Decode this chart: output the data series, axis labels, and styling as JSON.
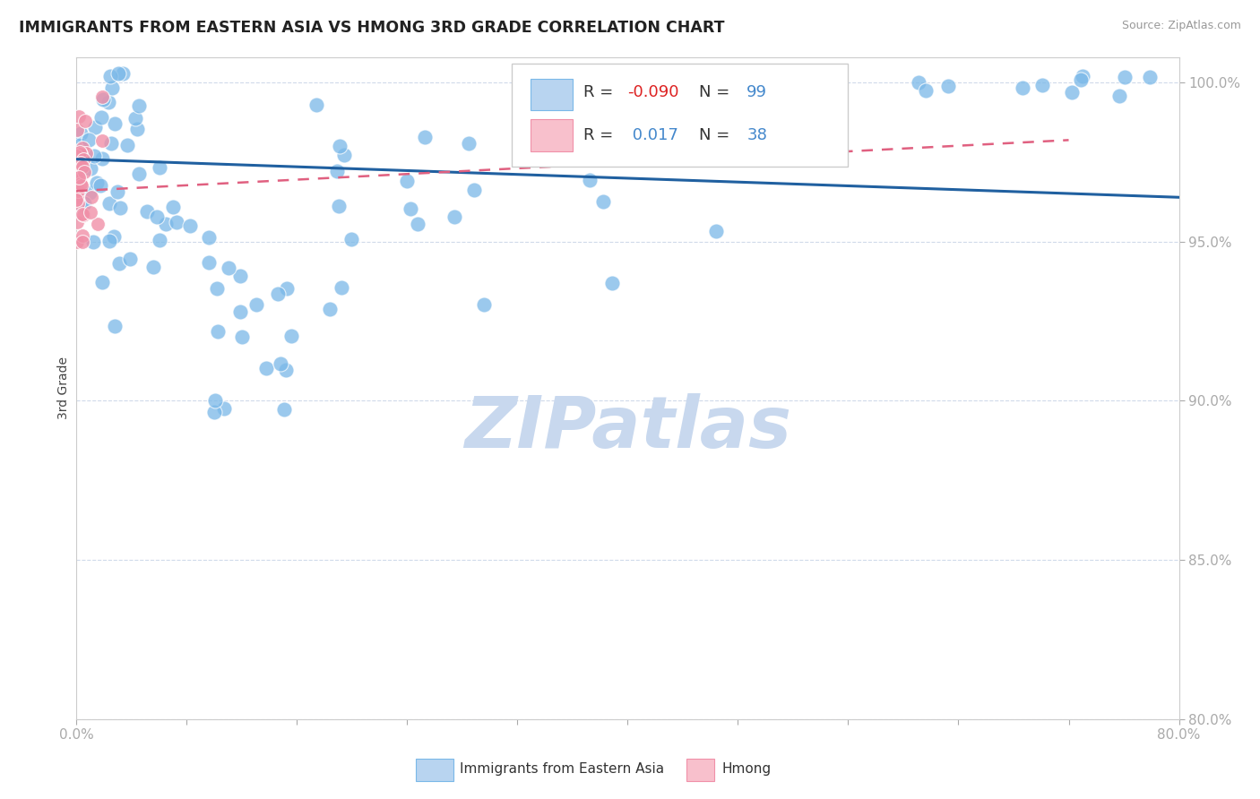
{
  "title": "IMMIGRANTS FROM EASTERN ASIA VS HMONG 3RD GRADE CORRELATION CHART",
  "source": "Source: ZipAtlas.com",
  "ylabel": "3rd Grade",
  "xlim": [
    0.0,
    0.8
  ],
  "ylim": [
    0.8,
    1.008
  ],
  "ytick_vals": [
    0.8,
    0.85,
    0.9,
    0.95,
    1.0
  ],
  "ytick_labels": [
    "80.0%",
    "85.0%",
    "90.0%",
    "95.0%",
    "100.0%"
  ],
  "xtick_vals": [
    0.0,
    0.08,
    0.16,
    0.24,
    0.32,
    0.4,
    0.48,
    0.56,
    0.64,
    0.72,
    0.8
  ],
  "xtick_labels": [
    "0.0%",
    "",
    "",
    "",
    "",
    "",
    "",
    "",
    "",
    "",
    "80.0%"
  ],
  "blue_color": "#7ab8e8",
  "blue_line_color": "#2060a0",
  "pink_color": "#f090a8",
  "pink_line_color": "#e06080",
  "watermark": "ZIPatlas",
  "watermark_color": "#c8d8ee",
  "grid_color": "#d0daea",
  "background_color": "#ffffff",
  "R_blue": "-0.090",
  "N_blue": "99",
  "R_pink": "0.017",
  "N_pink": "38",
  "legend_label_blue": "Immigrants from Eastern Asia",
  "legend_label_pink": "Hmong"
}
